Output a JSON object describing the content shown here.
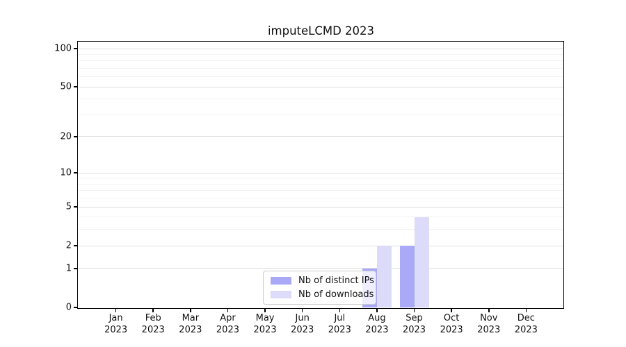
{
  "chart_data": {
    "type": "bar",
    "title": "imputeLCMD 2023",
    "year_label": "2023",
    "months": [
      "Jan",
      "Feb",
      "Mar",
      "Apr",
      "May",
      "Jun",
      "Jul",
      "Aug",
      "Sep",
      "Oct",
      "Nov",
      "Dec"
    ],
    "categories": [
      "Jan 2023",
      "Feb 2023",
      "Mar 2023",
      "Apr 2023",
      "May 2023",
      "Jun 2023",
      "Jul 2023",
      "Aug 2023",
      "Sep 2023",
      "Oct 2023",
      "Nov 2023",
      "Dec 2023"
    ],
    "series": [
      {
        "name": "Nb of distinct IPs",
        "color": "#a9a9f7",
        "values": [
          0,
          0,
          0,
          0,
          0,
          0,
          0,
          1,
          2,
          0,
          0,
          0
        ]
      },
      {
        "name": "Nb of downloads",
        "color": "#dcdcfa",
        "values": [
          0,
          0,
          0,
          0,
          0,
          0,
          0,
          2,
          4,
          0,
          0,
          0
        ]
      }
    ],
    "xlabel": "",
    "ylabel": "",
    "yscale": "log1p",
    "ylim": [
      0,
      112
    ],
    "yticks": [
      0,
      1,
      2,
      5,
      10,
      20,
      50,
      100
    ],
    "yticks_minor": [
      3,
      4,
      6,
      7,
      8,
      9,
      30,
      40,
      60,
      70,
      80,
      90
    ],
    "grid": "horizontal-on",
    "legend_position": "lower-center",
    "colors": {
      "frame": "#000000",
      "major_grid": "#dedede",
      "minor_grid": "#f3f3f3",
      "text": "#111111",
      "legend_border": "#cccccc",
      "background": "#ffffff"
    }
  }
}
